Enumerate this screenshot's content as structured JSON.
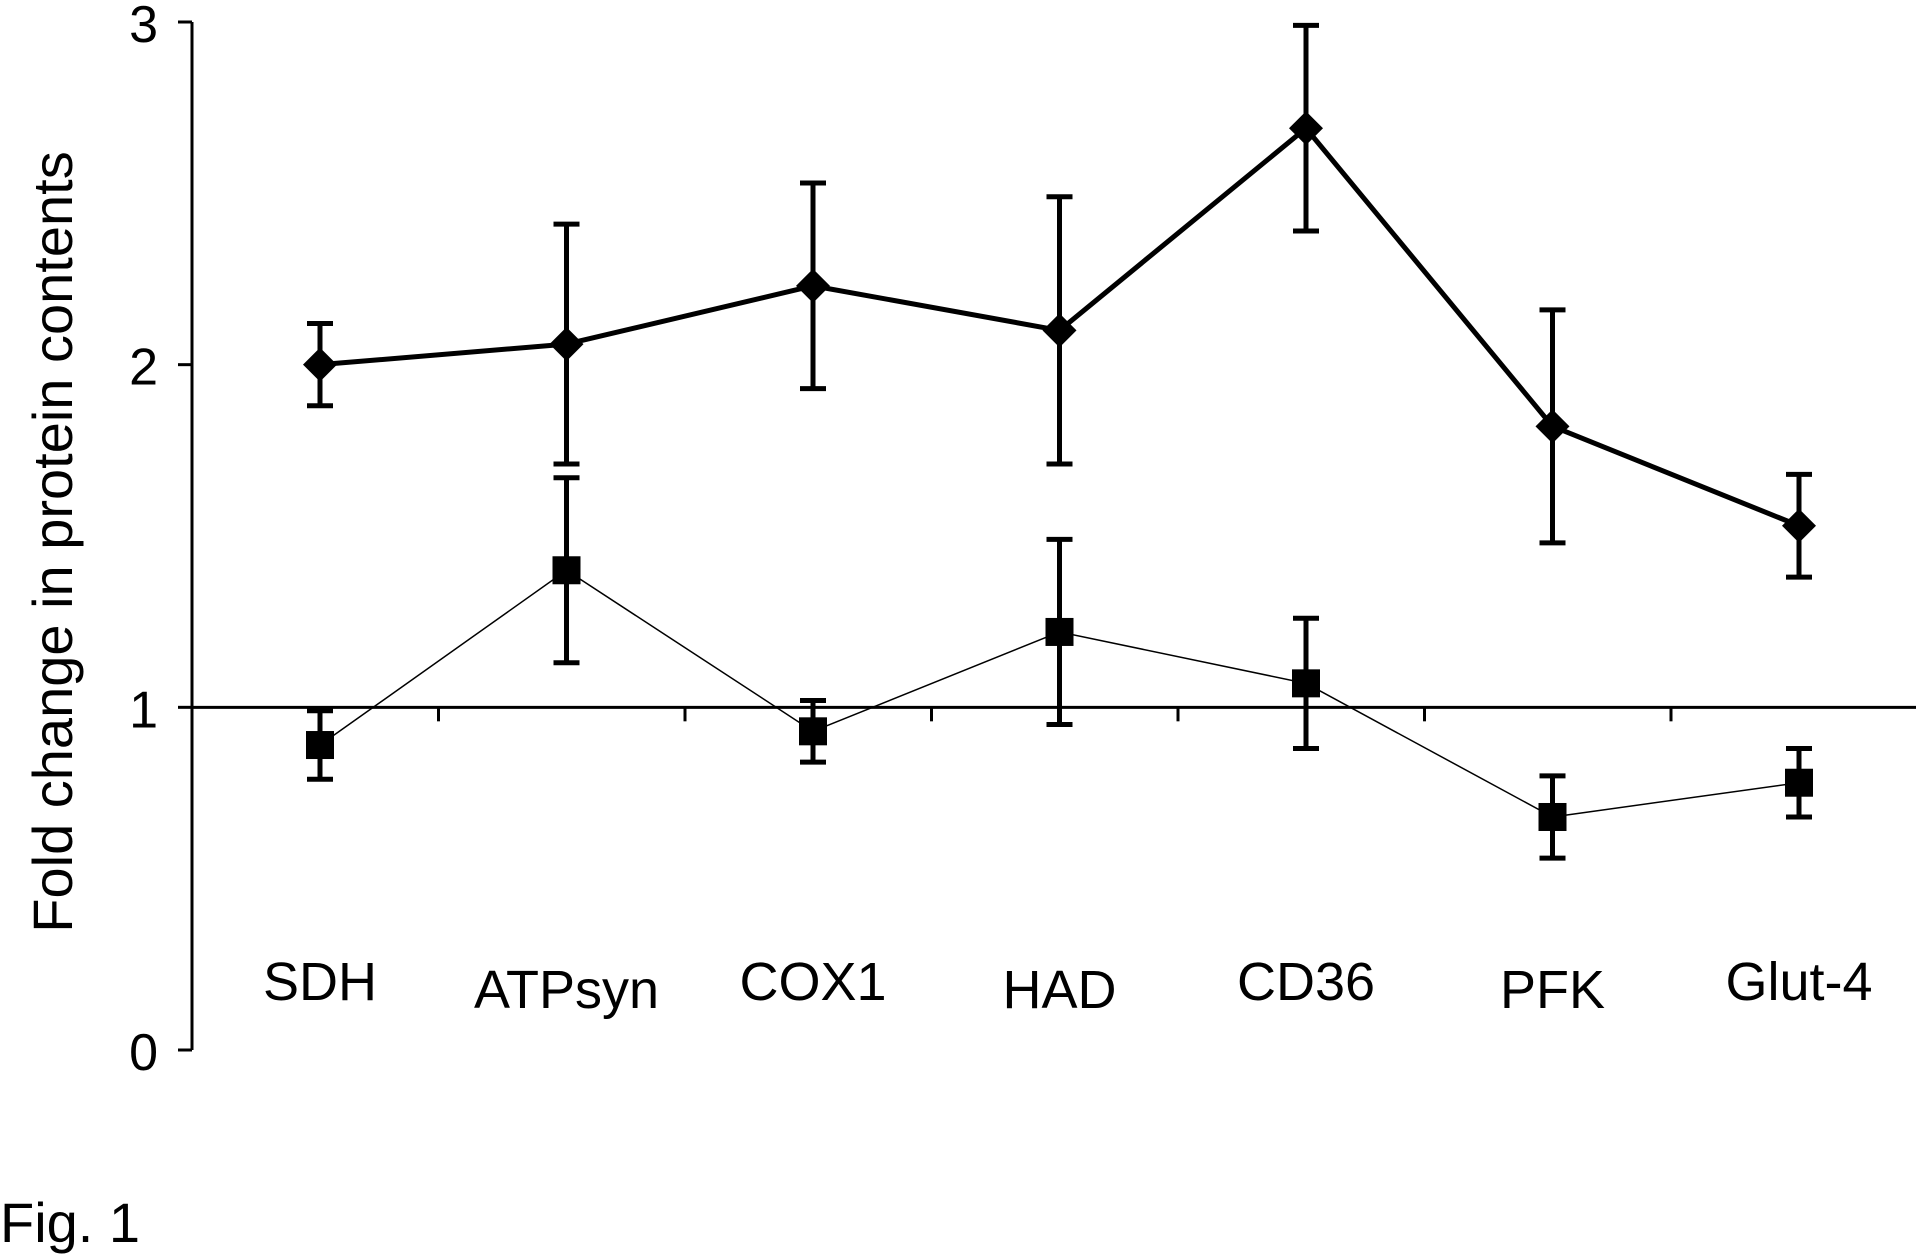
{
  "figure_label": "Fig. 1",
  "colors": {
    "ink": "#000000",
    "background": "#ffffff"
  },
  "chart_data": {
    "type": "line",
    "title": "",
    "xlabel": "",
    "ylabel": "Fold change in protein contents",
    "categories": [
      "SDH",
      "ATPsyn",
      "COX1",
      "HAD",
      "CD36",
      "PFK",
      "Glut-4"
    ],
    "ylim": [
      0,
      3
    ],
    "yticks": [
      0,
      1,
      2,
      3
    ],
    "reference_line": 1,
    "series": [
      {
        "name": "diamond series",
        "marker": "diamond",
        "line": "thick",
        "values": [
          2.0,
          2.06,
          2.23,
          2.1,
          2.69,
          1.82,
          1.53
        ],
        "error": [
          0.12,
          0.35,
          0.3,
          0.39,
          0.3,
          0.34,
          0.15
        ]
      },
      {
        "name": "square series",
        "marker": "square",
        "line": "thin",
        "values": [
          0.89,
          1.4,
          0.93,
          1.22,
          1.07,
          0.68,
          0.78
        ],
        "error": [
          0.1,
          0.27,
          0.09,
          0.27,
          0.19,
          0.12,
          0.1
        ]
      }
    ]
  }
}
